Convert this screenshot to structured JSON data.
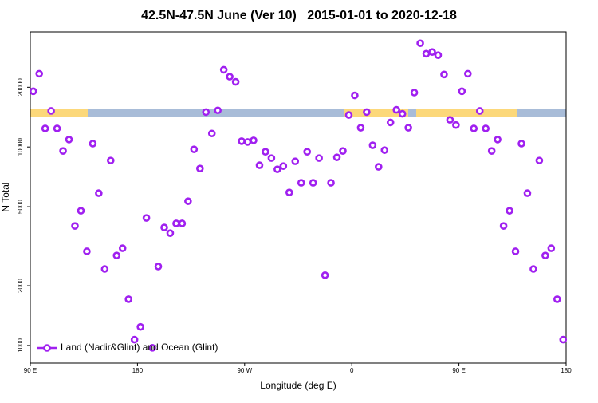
{
  "chart_data": {
    "type": "scatter",
    "title": "42.5N-47.5N June (Ver 10)   2015-01-01 to 2020-12-18",
    "x_label": "Longitude (deg E)",
    "y_label": "N Total",
    "xlim": [
      90,
      540
    ],
    "xticks": [
      {
        "value": 90,
        "label": "90 E"
      },
      {
        "value": 180,
        "label": "180"
      },
      {
        "value": 270,
        "label": "90 W"
      },
      {
        "value": 360,
        "label": "0"
      },
      {
        "value": 450,
        "label": "90 E"
      },
      {
        "value": 540,
        "label": "180"
      }
    ],
    "ylim": [
      815,
      38000
    ],
    "yticks": [
      1000,
      2000,
      5000,
      10000,
      20000
    ],
    "log_y": true,
    "legend": "bottom-left",
    "x": [
      92.5,
      97.5,
      102.5,
      107.5,
      112.5,
      117.5,
      122.5,
      127.5,
      132.5,
      137.5,
      142.5,
      147.5,
      152.5,
      157.5,
      162.5,
      167.5,
      172.5,
      177.5,
      182.5,
      187.5,
      192.5,
      197.5,
      202.5,
      207.5,
      212.5,
      217.5,
      222.5,
      227.5,
      232.5,
      237.5,
      242.5,
      247.5,
      252.5,
      257.5,
      262.5,
      267.5,
      272.5,
      277.5,
      282.5,
      287.5,
      292.5,
      297.5,
      302.5,
      307.5,
      312.5,
      317.5,
      322.5,
      327.5,
      332.5,
      337.5,
      342.5,
      347.5,
      352.5,
      357.5,
      362.5,
      367.5,
      372.5,
      377.5,
      382.5,
      387.5,
      392.5,
      397.5,
      402.5,
      407.5,
      412.5,
      417.5,
      422.5,
      427.5,
      432.5,
      437.5,
      442.5,
      447.5,
      452.5,
      457.5,
      462.5,
      467.5,
      472.5,
      477.5,
      482.5,
      487.5,
      492.5,
      497.5,
      502.5,
      507.5,
      512.5,
      517.5,
      522.5,
      527.5,
      532.5,
      537.5
    ],
    "series": [
      {
        "name": "Land (Nadir&Glint) and Ocean (Glint)",
        "color": "#a020f0",
        "values": [
          19100,
          23400,
          12400,
          15200,
          12400,
          9550,
          10900,
          4000,
          4770,
          2980,
          10400,
          5850,
          2430,
          8550,
          2840,
          3090,
          1710,
          1070,
          1240,
          4390,
          973,
          2500,
          3930,
          3680,
          4120,
          4120,
          5330,
          9730,
          7790,
          15000,
          11700,
          15300,
          24500,
          22600,
          21300,
          10700,
          10600,
          10800,
          8090,
          9460,
          8790,
          7720,
          8010,
          5900,
          8470,
          6600,
          9460,
          6600,
          8790,
          2260,
          6600,
          8870,
          9550,
          14500,
          18200,
          12500,
          15000,
          10200,
          7940,
          9640,
          13300,
          15400,
          14700,
          12500,
          18800,
          33300,
          29500,
          30100,
          29000,
          23200,
          13700,
          12900,
          19100,
          23400,
          12400,
          15200,
          12400,
          9550,
          10900,
          4000,
          4770,
          2980,
          10400,
          5850,
          2430,
          8550,
          2840,
          3090,
          1710,
          1070
        ]
      }
    ]
  }
}
